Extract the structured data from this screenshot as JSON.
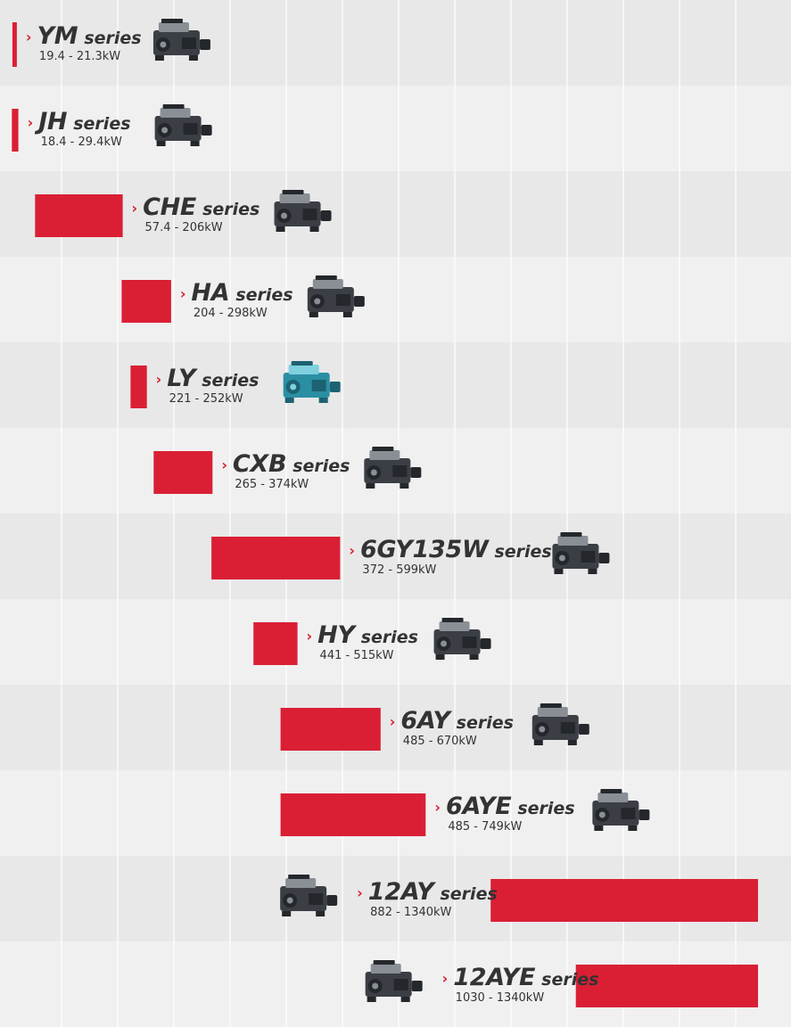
{
  "colors": {
    "bar": "#da1f35",
    "row_odd": "#e8e8e8",
    "row_even": "#f0f0f0",
    "grid": "#ffffff",
    "text": "#333333"
  },
  "chart_data": {
    "type": "bar",
    "orientation": "horizontal-range",
    "unit": "kW",
    "series_word": "series",
    "categories": [
      "YM",
      "JH",
      "CHE",
      "HA",
      "LY",
      "CXB",
      "6GY135W",
      "HY",
      "6AY",
      "6AYE",
      "12AY",
      "12AYE"
    ],
    "ranges": [
      {
        "name": "YM",
        "min": 19.4,
        "max": 21.3,
        "label": "19.4 - 21.3kW",
        "icon": "marine-engine-icon"
      },
      {
        "name": "JH",
        "min": 18.4,
        "max": 29.4,
        "label": "18.4 - 29.4kW",
        "icon": "marine-engine-icon"
      },
      {
        "name": "CHE",
        "min": 57.4,
        "max": 206,
        "label": "57.4 - 206kW",
        "icon": "marine-engine-icon"
      },
      {
        "name": "HA",
        "min": 204,
        "max": 298,
        "label": "204 - 298kW",
        "icon": "marine-engine-icon"
      },
      {
        "name": "LY",
        "min": 221,
        "max": 252,
        "label": "221 - 252kW",
        "icon": "marine-engine-icon"
      },
      {
        "name": "CXB",
        "min": 265,
        "max": 374,
        "label": "265 - 374kW",
        "icon": "marine-engine-icon"
      },
      {
        "name": "6GY135W",
        "min": 372,
        "max": 599,
        "label": "372 - 599kW",
        "icon": "marine-engine-icon"
      },
      {
        "name": "HY",
        "min": 441,
        "max": 515,
        "label": "441 - 515kW",
        "icon": "marine-engine-icon"
      },
      {
        "name": "6AY",
        "min": 485,
        "max": 670,
        "label": "485 - 670kW",
        "icon": "marine-engine-icon"
      },
      {
        "name": "6AYE",
        "min": 485,
        "max": 749,
        "label": "485 - 749kW",
        "icon": "marine-engine-icon"
      },
      {
        "name": "12AY",
        "min": 882,
        "max": 1340,
        "label": "882 - 1340kW",
        "icon": "marine-engine-icon"
      },
      {
        "name": "12AYE",
        "min": 1030,
        "max": 1340,
        "label": "1030 - 1340kW",
        "icon": "marine-engine-icon"
      }
    ],
    "grid": true,
    "legend": "none"
  }
}
